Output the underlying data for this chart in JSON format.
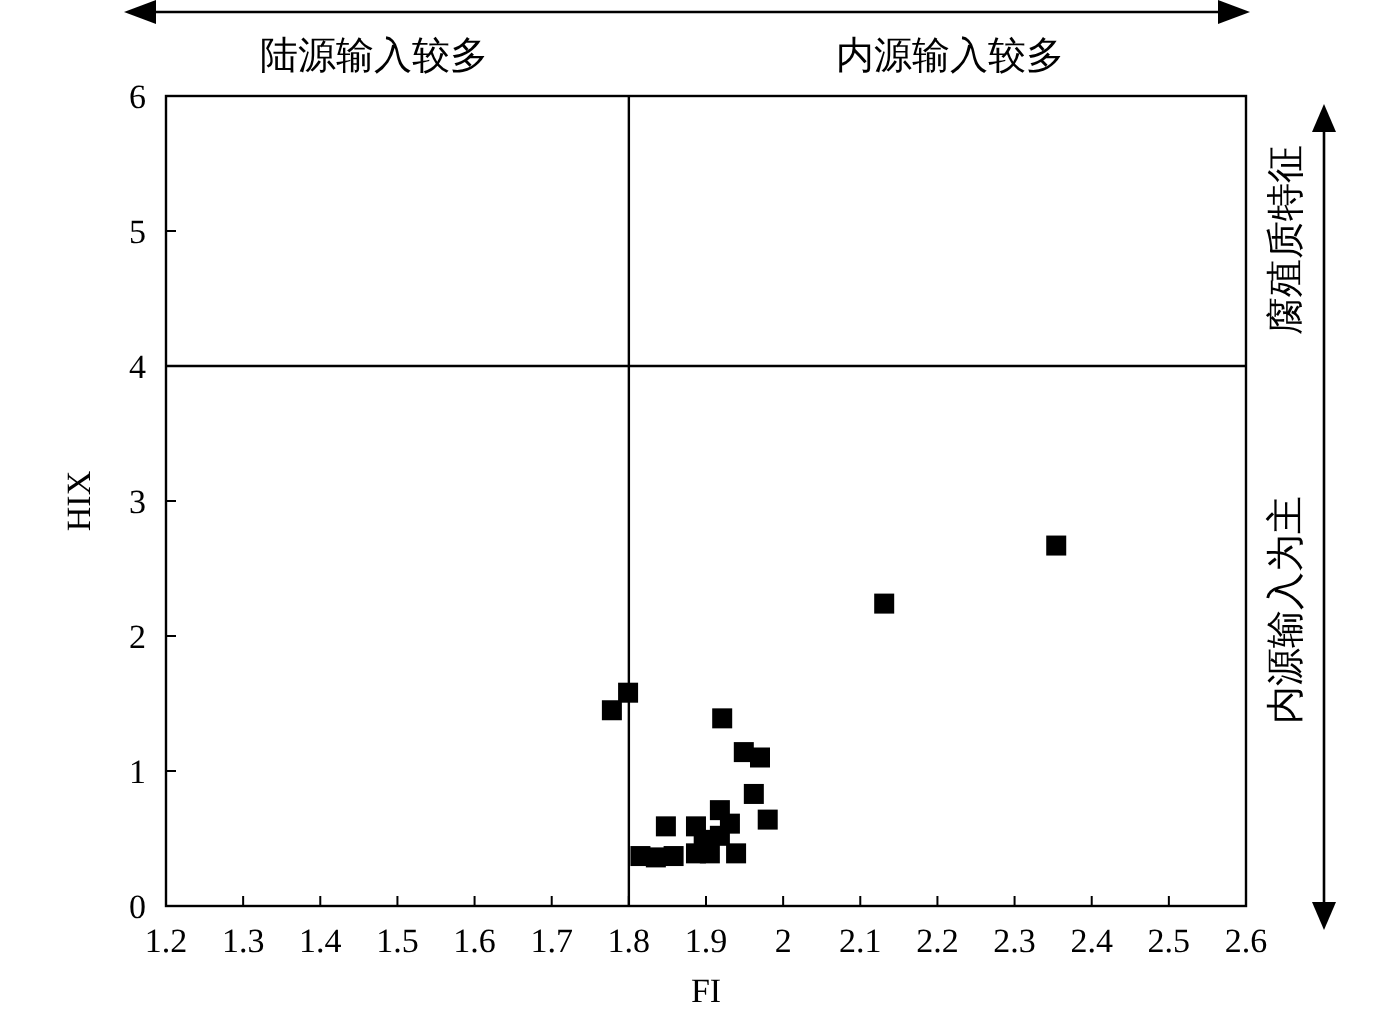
{
  "chart_data": {
    "type": "scatter",
    "xlabel": "FI",
    "ylabel": "HIX",
    "marker": "square",
    "color": "#000000",
    "grid": false,
    "x": [
      1.778,
      1.799,
      1.815,
      1.835,
      1.858,
      1.879,
      1.887,
      1.887,
      1.897,
      1.905,
      1.918,
      1.918,
      1.921,
      1.926,
      1.931,
      1.939,
      1.848,
      1.962,
      1.98,
      1.949,
      1.97,
      2.131,
      2.354
    ],
    "values": [
      1.45,
      1.58,
      0.37,
      0.36,
      0.37,
      null,
      0.59,
      0.39,
      0.49,
      0.39,
      0.71,
      0.52,
      1.39,
      null,
      0.61,
      0.39,
      0.59,
      0.83,
      0.64,
      1.14,
      1.1,
      2.24,
      2.67
    ],
    "xlim": [
      1.2,
      2.6
    ],
    "xticks": [
      1.2,
      1.3,
      1.4,
      1.5,
      1.6,
      1.7,
      1.8,
      1.9,
      2.0,
      2.1,
      2.2,
      2.3,
      2.4,
      2.5,
      2.6
    ],
    "ylim": [
      0,
      6
    ],
    "yticks": [
      0,
      1,
      2,
      3,
      4,
      5,
      6
    ],
    "ref_lines": [
      {
        "axis": "x",
        "value": 1.8,
        "color": "#000000"
      },
      {
        "axis": "y",
        "value": 4,
        "color": "#000000"
      }
    ],
    "annotations": [
      "陆源输入较多",
      "内源输入较多",
      "腐殖质特征",
      "内源输入为主"
    ]
  }
}
